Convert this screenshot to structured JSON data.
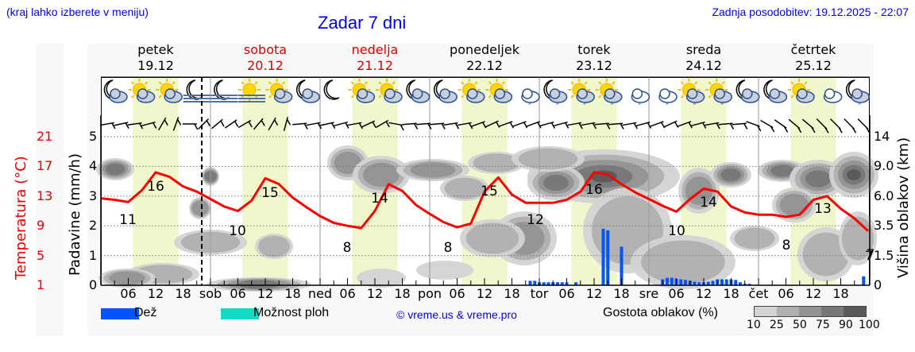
{
  "header": {
    "region_hint": "(kraj lahko izberete v meniju)",
    "title": "Zadar 7 dni",
    "last_update": "Zadnja posodobitev: 19.12.2025 - 22:07"
  },
  "days": [
    {
      "name": "petek",
      "date": "19.12",
      "weekend": false
    },
    {
      "name": "sobota",
      "date": "20.12",
      "weekend": true
    },
    {
      "name": "nedelja",
      "date": "21.12",
      "weekend": true
    },
    {
      "name": "ponedeljek",
      "date": "22.12",
      "weekend": false
    },
    {
      "name": "torek",
      "date": "23.12",
      "weekend": false
    },
    {
      "name": "sreda",
      "date": "24.12",
      "weekend": false
    },
    {
      "name": "četrtek",
      "date": "25.12",
      "weekend": false
    }
  ],
  "axes": {
    "left_label": "Padavine (mm/h)",
    "left_ticks": [
      "0",
      "1",
      "2",
      "3",
      "4",
      "5"
    ],
    "temp_label": "Temperatura (°C)",
    "temp_ticks": [
      "1",
      "5",
      "9",
      "13",
      "17",
      "21"
    ],
    "right_label": "Višina oblakov (km)",
    "right_ticks": [
      "0",
      "1.5",
      "3.5",
      "6.0",
      "9.0",
      "14"
    ],
    "right_tick_overlap": "7",
    "x_ticks": [
      "06",
      "12",
      "18",
      "sob",
      "06",
      "12",
      "18",
      "ned",
      "06",
      "12",
      "18",
      "pon",
      "06",
      "12",
      "18",
      "tor",
      "06",
      "12",
      "18",
      "sre",
      "06",
      "12",
      "18",
      "čet",
      "06",
      "12",
      "18"
    ]
  },
  "legend": {
    "rain_label": "Dež",
    "rain_color": "#0055ff",
    "showers_label": "Možnost ploh",
    "showers_color": "#14d9c5",
    "copyright": "© vreme.us & vreme.pro",
    "density_label": "Gostota oblakov (%)",
    "density_ticks": [
      "10",
      "25",
      "50",
      "75",
      "90",
      "100"
    ],
    "density_colors": [
      "#d3d3d3",
      "#b0b0b0",
      "#939393",
      "#777777",
      "#5a5a5a"
    ]
  },
  "icons": [
    "moon-cloud-icon",
    "sun-cloud-icon",
    "sun-cloud-icon",
    "moon-fog-icon",
    "moon-fog-icon",
    "sun-fog-icon",
    "sun-cloud-icon",
    "moon-cloud-icon",
    "moon-icon",
    "sun-cloud-icon",
    "sun-cloud-icon",
    "moon-cloud-icon",
    "moon-cloud-icon",
    "sun-cloud-icon",
    "sun-cloud-icon",
    "cloud-rain-icon",
    "moon-cloud-rain-icon",
    "sun-cloud-rain-icon",
    "sun-cloud-rain-icon",
    "cloud-rain-icon",
    "cloud-rain-icon",
    "sun-cloud-rain-icon",
    "sun-cloud-rain-icon",
    "moon-cloud-icon",
    "moon-cloud-icon",
    "sun-cloud-icon",
    "cloud-icon",
    "moon-cloud-rain-icon"
  ],
  "chart_data": {
    "type": "line",
    "title": "Zadar 7 dni",
    "xlabel": "",
    "ylabel": "Padavine (mm/h)",
    "ylim": [
      0,
      5
    ],
    "temp_ylim": [
      1,
      21
    ],
    "grid": true,
    "now_marker": "Fri 19.12 ~22h (dashed line)",
    "temperature_extremes": [
      {
        "day": "petek",
        "min": 11,
        "max": 16
      },
      {
        "day": "sobota",
        "min": 10,
        "max": 15
      },
      {
        "day": "nedelja",
        "min": 8,
        "max": 14
      },
      {
        "day": "ponedeljek",
        "min": 8,
        "max": 15
      },
      {
        "day": "torek",
        "min": 12,
        "max": 16
      },
      {
        "day": "sreda",
        "min": 10,
        "max": 14
      },
      {
        "day": "četrtek",
        "min": 8,
        "max": 13
      },
      {
        "day": "end",
        "min": 7
      }
    ],
    "series": [
      {
        "name": "Temperatura (°C)",
        "color": "#ff0000",
        "x_hours": [
          0,
          3,
          6,
          9,
          12,
          15,
          18,
          21,
          24,
          27,
          30,
          33,
          36,
          39,
          42,
          45,
          48,
          51,
          54,
          57,
          60,
          63,
          66,
          69,
          72,
          75,
          78,
          81,
          84,
          87,
          90,
          93,
          96,
          99,
          102,
          105,
          108,
          111,
          114,
          117,
          120,
          123,
          126,
          129,
          132,
          135,
          138,
          141,
          144,
          147,
          150,
          153,
          156,
          159,
          162,
          165,
          168
        ],
        "values": [
          12.7,
          12.5,
          12.2,
          13.8,
          16.2,
          15.6,
          14.3,
          13.6,
          12.6,
          11.6,
          11.0,
          12.4,
          15.4,
          14.6,
          12.8,
          11.5,
          10.3,
          9.4,
          9.0,
          8.7,
          11.0,
          14.6,
          13.7,
          11.8,
          10.6,
          9.5,
          8.8,
          9.3,
          13.6,
          15.5,
          13.2,
          12.1,
          12.1,
          12.1,
          12.5,
          13.6,
          16.2,
          15.9,
          14.6,
          13.5,
          12.6,
          11.7,
          10.9,
          12.6,
          14.0,
          13.6,
          11.6,
          10.8,
          10.5,
          10.5,
          10.2,
          10.5,
          12.5,
          13.0,
          11.3,
          10.0,
          8.3
        ]
      },
      {
        "name": "Dež (mm/h)",
        "color": "#0055ff",
        "x_hours": [
          94,
          95,
          96,
          97,
          98,
          99,
          100,
          101,
          102,
          104,
          110,
          111,
          114,
          123,
          124,
          125,
          126,
          127,
          128,
          129,
          130,
          131,
          132,
          133,
          134,
          135,
          136,
          137,
          138,
          139,
          140,
          141,
          142,
          167
        ],
        "values": [
          0.15,
          0.15,
          0.1,
          0.1,
          0.1,
          0.1,
          0.1,
          0.1,
          0.1,
          0.1,
          1.9,
          1.85,
          1.3,
          0.2,
          0.25,
          0.25,
          0.22,
          0.2,
          0.18,
          0.15,
          0.12,
          0.1,
          0.1,
          0.12,
          0.15,
          0.2,
          0.2,
          0.2,
          0.2,
          0.18,
          0.1,
          0.05,
          0.05,
          0.3
        ]
      }
    ]
  }
}
